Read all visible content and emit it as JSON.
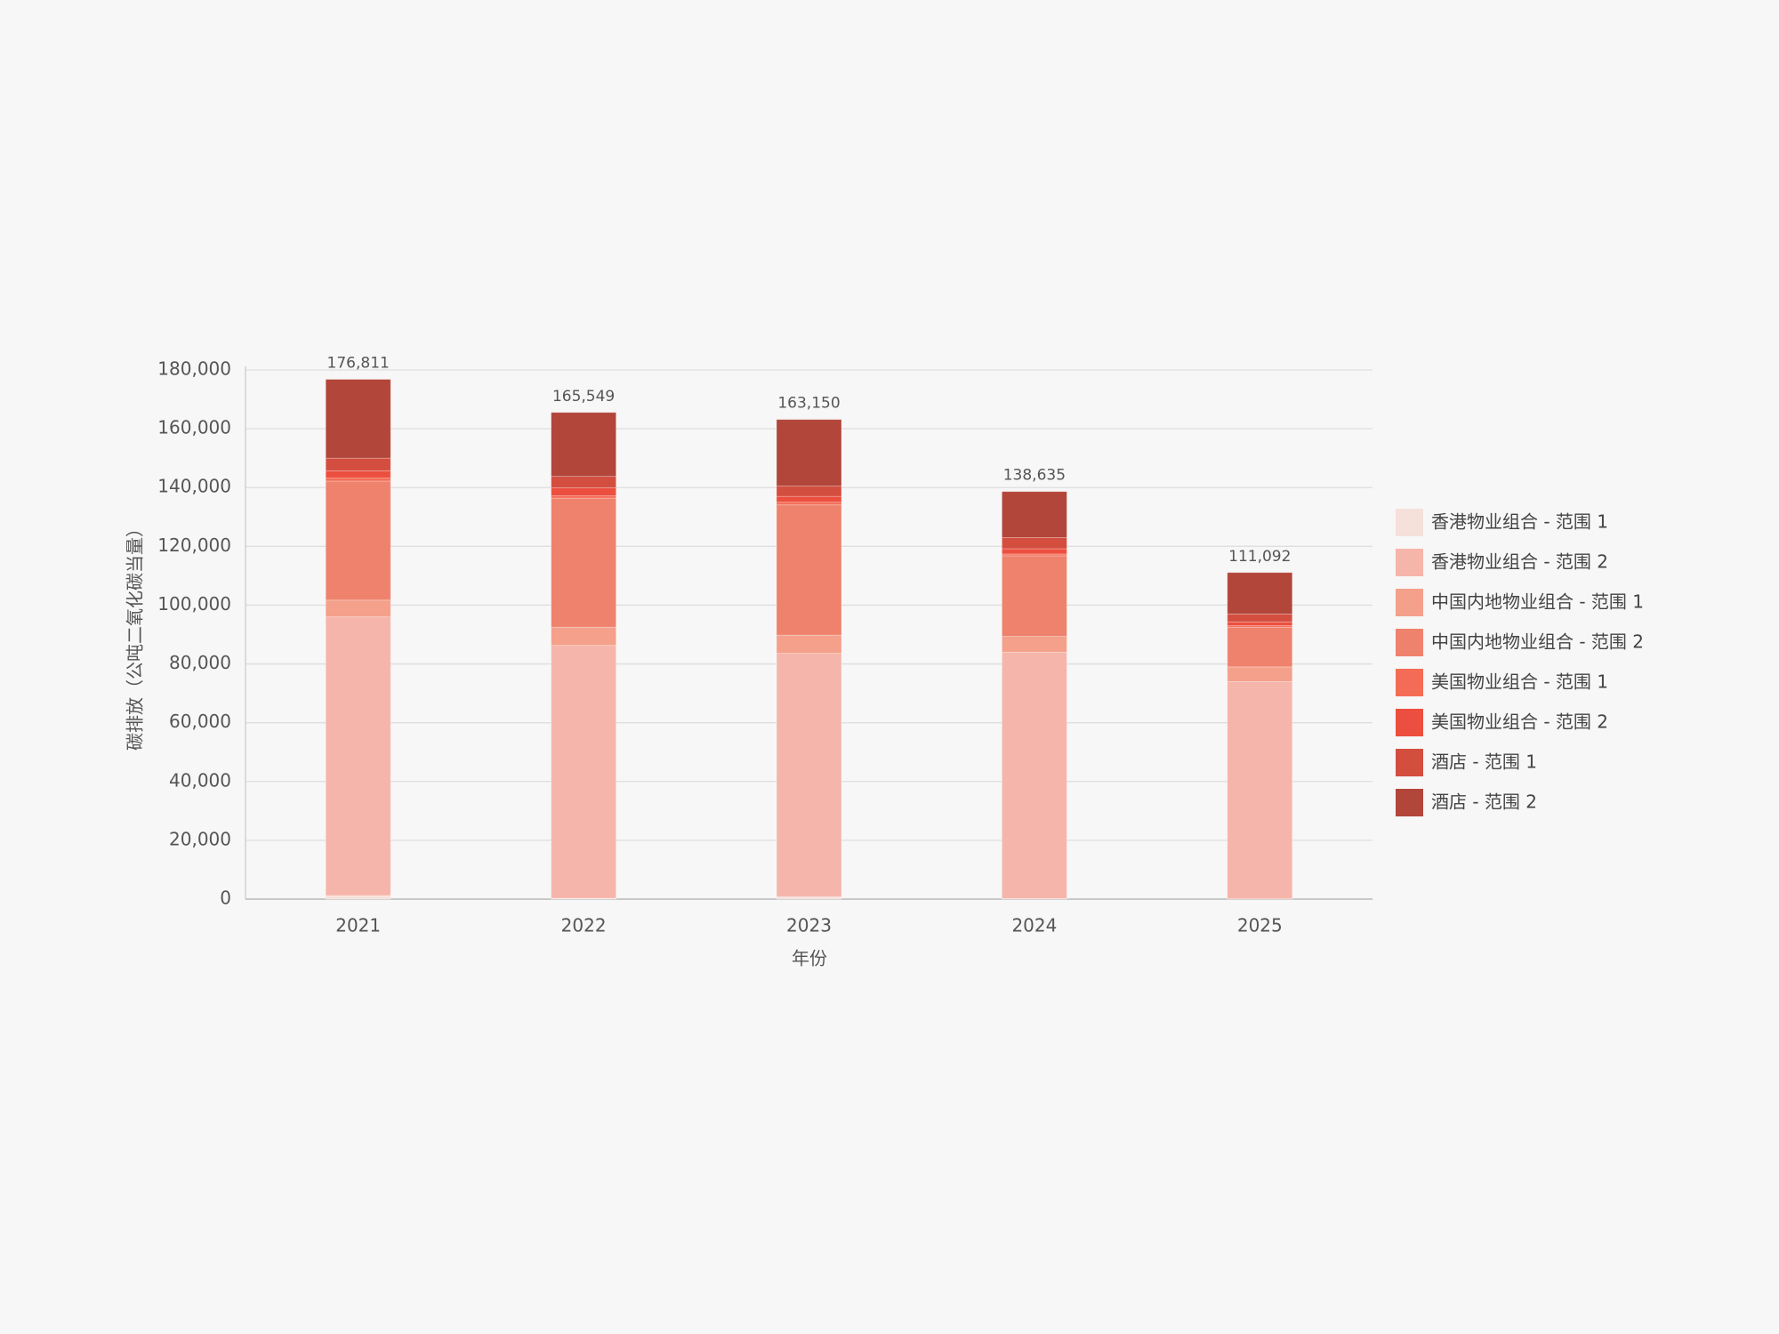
{
  "chart_data": {
    "type": "stacked_bar",
    "x_label": "年份",
    "y_label": "碳排放（公吨二氧化碳当量）",
    "categories": [
      "2021",
      "2022",
      "2023",
      "2024",
      "2025"
    ],
    "series": [
      {
        "name": "香港物业组合 - 范围 1",
        "color": "#f5e0da",
        "values": [
          1200,
          300,
          800,
          200,
          100
        ]
      },
      {
        "name": "香港物业组合 - 范围 2",
        "color": "#f6b5aa",
        "values": [
          94800,
          86000,
          82800,
          83800,
          73900
        ]
      },
      {
        "name": "中国内地物业组合 - 范围 1",
        "color": "#f4a08a",
        "values": [
          5700,
          6200,
          6200,
          5400,
          5000
        ]
      },
      {
        "name": "中国内地物业组合 - 范围 2",
        "color": "#ef826c",
        "values": [
          40500,
          43900,
          44300,
          27400,
          13500
        ]
      },
      {
        "name": "美国物业组合 - 范围 1",
        "color": "#f46c55",
        "values": [
          1000,
          800,
          900,
          600,
          500
        ]
      },
      {
        "name": "美国物业组合 - 范围 2",
        "color": "#ec4f3f",
        "values": [
          2500,
          2700,
          2000,
          1800,
          1300
        ]
      },
      {
        "name": "酒店 - 范围 1",
        "color": "#d44e3f",
        "values": [
          4300,
          3900,
          3500,
          3800,
          2700
        ]
      },
      {
        "name": "酒店 - 范围 2",
        "color": "#b2463a",
        "values": [
          26811,
          21749,
          22650,
          15635,
          14092
        ]
      }
    ],
    "totals": [
      176811,
      165549,
      163150,
      138635,
      111092
    ],
    "total_labels": [
      "176,811",
      "165,549",
      "163,150",
      "138,635",
      "111,092"
    ],
    "ylim": [
      0,
      180000
    ],
    "yticks": [
      0,
      {
        "value": 20000,
        "label": "20,000"
      },
      {
        "value": 40000,
        "label": "40,000"
      },
      {
        "value": 60000,
        "label": "60,000"
      },
      {
        "value": 80000,
        "label": "80,000"
      },
      {
        "value": 100000,
        "label": "100,000"
      },
      {
        "value": 120000,
        "label": "120,000"
      },
      {
        "value": 140000,
        "label": "140,000"
      },
      {
        "value": 160000,
        "label": "160,000"
      },
      {
        "value": 180000,
        "label": "180,000"
      }
    ],
    "grid": true,
    "legend": "right"
  }
}
